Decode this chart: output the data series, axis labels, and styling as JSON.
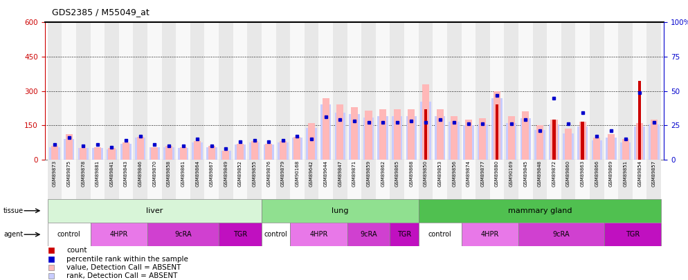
{
  "title": "GDS2385 / M55049_at",
  "samples": [
    "GSM89873",
    "GSM89875",
    "GSM89878",
    "GSM89881",
    "GSM89841",
    "GSM89843",
    "GSM89846",
    "GSM89870",
    "GSM89858",
    "GSM89861",
    "GSM89864",
    "GSM89867",
    "GSM89849",
    "GSM89852",
    "GSM89855",
    "GSM89876",
    "GSM89879",
    "GSM90168",
    "GSM89642",
    "GSM89644",
    "GSM89847",
    "GSM89871",
    "GSM89859",
    "GSM89862",
    "GSM89865",
    "GSM89868",
    "GSM89850",
    "GSM89853",
    "GSM89856",
    "GSM89874",
    "GSM89877",
    "GSM89880",
    "GSM90169",
    "GSM89845",
    "GSM89848",
    "GSM89872",
    "GSM89860",
    "GSM89863",
    "GSM89866",
    "GSM89869",
    "GSM89851",
    "GSM89854",
    "GSM89857"
  ],
  "count": [
    0,
    0,
    0,
    0,
    0,
    0,
    0,
    0,
    0,
    0,
    0,
    0,
    0,
    0,
    0,
    0,
    0,
    0,
    0,
    0,
    0,
    0,
    0,
    0,
    0,
    0,
    220,
    0,
    0,
    0,
    0,
    240,
    0,
    0,
    0,
    175,
    0,
    165,
    0,
    0,
    0,
    345,
    0
  ],
  "percentile": [
    11,
    16,
    10,
    11,
    9,
    14,
    17,
    11,
    10,
    10,
    15,
    10,
    8,
    13,
    14,
    13,
    14,
    17,
    15,
    31,
    29,
    28,
    27,
    27,
    27,
    28,
    27,
    29,
    27,
    26,
    26,
    47,
    26,
    29,
    21,
    45,
    26,
    34,
    17,
    21,
    15,
    49,
    27
  ],
  "value_absent": [
    60,
    110,
    50,
    55,
    50,
    75,
    100,
    55,
    60,
    55,
    80,
    60,
    40,
    70,
    80,
    70,
    80,
    100,
    160,
    270,
    240,
    230,
    215,
    220,
    220,
    220,
    330,
    220,
    190,
    175,
    180,
    300,
    190,
    210,
    150,
    175,
    135,
    165,
    95,
    110,
    90,
    160,
    175
  ],
  "rank_absent": [
    55,
    90,
    50,
    50,
    45,
    70,
    95,
    55,
    55,
    50,
    75,
    55,
    40,
    65,
    75,
    65,
    75,
    95,
    140,
    240,
    205,
    200,
    185,
    190,
    190,
    190,
    255,
    190,
    165,
    150,
    155,
    270,
    160,
    180,
    130,
    155,
    115,
    145,
    85,
    95,
    75,
    145,
    155
  ],
  "tissue_groups": [
    {
      "label": "liver",
      "start": 0,
      "end": 15,
      "color": "#d8f5d8"
    },
    {
      "label": "lung",
      "start": 15,
      "end": 26,
      "color": "#90e090"
    },
    {
      "label": "mammary gland",
      "start": 26,
      "end": 43,
      "color": "#50c050"
    }
  ],
  "agent_groups": [
    {
      "label": "control",
      "start": 0,
      "end": 3,
      "color": "#ffffff"
    },
    {
      "label": "4HPR",
      "start": 3,
      "end": 7,
      "color": "#e878e8"
    },
    {
      "label": "9cRA",
      "start": 7,
      "end": 12,
      "color": "#d040d0"
    },
    {
      "label": "TGR",
      "start": 12,
      "end": 15,
      "color": "#c010c0"
    },
    {
      "label": "control",
      "start": 15,
      "end": 17,
      "color": "#ffffff"
    },
    {
      "label": "4HPR",
      "start": 17,
      "end": 21,
      "color": "#e878e8"
    },
    {
      "label": "9cRA",
      "start": 21,
      "end": 24,
      "color": "#d040d0"
    },
    {
      "label": "TGR",
      "start": 24,
      "end": 26,
      "color": "#c010c0"
    },
    {
      "label": "control",
      "start": 26,
      "end": 29,
      "color": "#ffffff"
    },
    {
      "label": "4HPR",
      "start": 29,
      "end": 33,
      "color": "#e878e8"
    },
    {
      "label": "9cRA",
      "start": 33,
      "end": 39,
      "color": "#d040d0"
    },
    {
      "label": "TGR",
      "start": 39,
      "end": 43,
      "color": "#c010c0"
    }
  ],
  "ylim_left": [
    0,
    600
  ],
  "ylim_right": [
    0,
    100
  ],
  "yticks_left": [
    0,
    150,
    300,
    450,
    600
  ],
  "yticks_right": [
    0,
    25,
    50,
    75,
    100
  ],
  "count_color": "#cc0000",
  "percentile_color": "#0000cc",
  "value_absent_color": "#ffb8b8",
  "rank_absent_color": "#c8ccff",
  "bar_width": 0.75
}
